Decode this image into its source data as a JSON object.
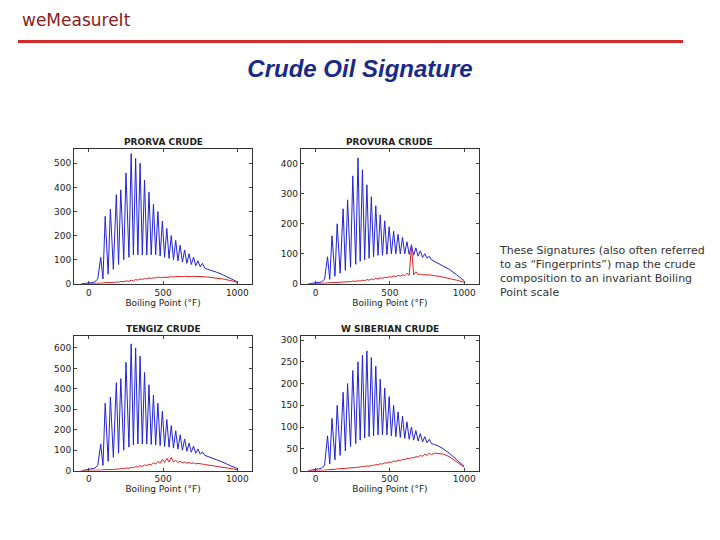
{
  "header": {
    "logo": "weMeasureIt",
    "title": "Crude Oil Signature"
  },
  "note": "These Signatures (also often referred to as “Fingerprints”) map the crude composition to an invariant Boiling Point scale",
  "chart_data": [
    {
      "type": "line",
      "title": "PRORVA CRUDE",
      "x_label": "Boiling Point (°F)",
      "x": [
        -50,
        0,
        20,
        40,
        60,
        80,
        95,
        110,
        130,
        145,
        165,
        185,
        200,
        215,
        235,
        250,
        270,
        285,
        300,
        315,
        330,
        345,
        360,
        375,
        390,
        405,
        420,
        435,
        450,
        465,
        480,
        495,
        510,
        525,
        540,
        555,
        570,
        585,
        600,
        615,
        630,
        645,
        660,
        675,
        690,
        705,
        720,
        735,
        750,
        765,
        780,
        800,
        830,
        860,
        900,
        950,
        1000
      ],
      "series": [
        {
          "color": "#2323d6",
          "values": [
            0,
            2,
            5,
            8,
            20,
            110,
            20,
            280,
            40,
            310,
            60,
            370,
            80,
            390,
            100,
            460,
            110,
            540,
            120,
            520,
            120,
            500,
            120,
            430,
            120,
            380,
            120,
            330,
            120,
            300,
            115,
            260,
            110,
            230,
            105,
            200,
            100,
            180,
            95,
            160,
            90,
            140,
            85,
            125,
            80,
            110,
            75,
            95,
            70,
            85,
            65,
            60,
            55,
            48,
            38,
            22,
            8
          ]
        },
        {
          "color": "#e02020",
          "values": [
            0,
            0,
            0,
            0,
            2,
            3,
            3,
            5,
            4,
            6,
            5,
            8,
            6,
            10,
            8,
            12,
            10,
            15,
            12,
            18,
            15,
            20,
            18,
            22,
            20,
            25,
            22,
            25,
            24,
            28,
            25,
            27,
            26,
            28,
            27,
            30,
            28,
            30,
            29,
            31,
            30,
            31,
            30,
            32,
            30,
            31,
            30,
            31,
            30,
            30,
            29,
            28,
            26,
            24,
            20,
            14,
            6
          ]
        }
      ],
      "xlim": [
        -100,
        1100
      ],
      "xticks": [
        0,
        500,
        1000
      ],
      "ylim": [
        0,
        560
      ],
      "yticks": [
        0,
        100,
        200,
        300,
        400,
        500
      ]
    },
    {
      "type": "line",
      "title": "PROVURA CRUDE",
      "x_label": "Boiling Point (°F)",
      "x": [
        -50,
        0,
        20,
        40,
        60,
        80,
        95,
        110,
        130,
        145,
        165,
        185,
        200,
        215,
        235,
        250,
        270,
        285,
        300,
        315,
        330,
        345,
        360,
        375,
        390,
        405,
        420,
        435,
        450,
        465,
        480,
        495,
        510,
        525,
        540,
        555,
        570,
        585,
        600,
        615,
        630,
        645,
        660,
        675,
        690,
        705,
        720,
        735,
        750,
        765,
        780,
        800,
        830,
        860,
        900,
        950,
        1000
      ],
      "series": [
        {
          "color": "#2323d6",
          "values": [
            0,
            2,
            4,
            6,
            15,
            90,
            15,
            160,
            25,
            200,
            35,
            250,
            45,
            280,
            55,
            360,
            65,
            420,
            75,
            380,
            80,
            330,
            85,
            290,
            90,
            260,
            95,
            230,
            95,
            210,
            98,
            190,
            100,
            175,
            100,
            165,
            100,
            155,
            100,
            140,
            98,
            130,
            95,
            120,
            92,
            110,
            88,
            100,
            85,
            92,
            80,
            75,
            68,
            60,
            48,
            30,
            10
          ]
        },
        {
          "color": "#e02020",
          "values": [
            0,
            0,
            0,
            0,
            2,
            3,
            3,
            4,
            4,
            5,
            5,
            6,
            6,
            8,
            7,
            9,
            8,
            10,
            9,
            12,
            10,
            14,
            12,
            16,
            14,
            18,
            16,
            20,
            18,
            22,
            20,
            24,
            22,
            26,
            24,
            28,
            25,
            30,
            27,
            35,
            28,
            125,
            30,
            40,
            30,
            32,
            30,
            31,
            29,
            30,
            28,
            27,
            25,
            22,
            18,
            12,
            5
          ]
        }
      ],
      "xlim": [
        -100,
        1100
      ],
      "xticks": [
        0,
        500,
        1000
      ],
      "ylim": [
        0,
        450
      ],
      "yticks": [
        0,
        100,
        200,
        300,
        400
      ]
    },
    {
      "type": "line",
      "title": "TENGIZ CRUDE",
      "x_label": "Boiling Point (°F)",
      "x": [
        -50,
        0,
        20,
        40,
        60,
        80,
        95,
        110,
        130,
        145,
        165,
        185,
        200,
        215,
        235,
        250,
        270,
        285,
        300,
        315,
        330,
        345,
        360,
        375,
        390,
        405,
        420,
        435,
        450,
        465,
        480,
        495,
        510,
        525,
        540,
        555,
        570,
        585,
        600,
        615,
        630,
        645,
        660,
        675,
        690,
        705,
        720,
        735,
        750,
        765,
        780,
        800,
        830,
        860,
        900,
        950,
        1000
      ],
      "series": [
        {
          "color": "#2323d6",
          "values": [
            0,
            5,
            10,
            12,
            25,
            130,
            25,
            330,
            45,
            360,
            65,
            430,
            85,
            450,
            100,
            530,
            115,
            620,
            125,
            600,
            130,
            560,
            130,
            480,
            130,
            420,
            128,
            370,
            125,
            330,
            122,
            290,
            118,
            250,
            115,
            220,
            110,
            195,
            105,
            175,
            100,
            155,
            95,
            135,
            90,
            120,
            85,
            105,
            80,
            92,
            75,
            70,
            62,
            55,
            42,
            25,
            10
          ]
        },
        {
          "color": "#e02020",
          "values": [
            0,
            0,
            0,
            0,
            2,
            3,
            3,
            5,
            4,
            6,
            5,
            8,
            7,
            10,
            9,
            13,
            11,
            16,
            14,
            20,
            17,
            24,
            20,
            28,
            24,
            32,
            28,
            38,
            32,
            45,
            36,
            55,
            40,
            60,
            42,
            65,
            42,
            50,
            40,
            45,
            38,
            42,
            36,
            40,
            34,
            38,
            33,
            35,
            32,
            32,
            30,
            28,
            25,
            22,
            18,
            12,
            5
          ]
        }
      ],
      "xlim": [
        -100,
        1100
      ],
      "xticks": [
        0,
        500,
        1000
      ],
      "ylim": [
        0,
        660
      ],
      "yticks": [
        0,
        100,
        200,
        300,
        400,
        500,
        600
      ]
    },
    {
      "type": "line",
      "title": "W SIBERIAN CRUDE",
      "x_label": "Boiling Point (°F)",
      "x": [
        -50,
        0,
        20,
        40,
        60,
        80,
        95,
        110,
        130,
        145,
        165,
        185,
        200,
        215,
        235,
        250,
        270,
        285,
        300,
        315,
        330,
        345,
        360,
        375,
        390,
        405,
        420,
        435,
        450,
        465,
        480,
        495,
        510,
        525,
        540,
        555,
        570,
        585,
        600,
        615,
        630,
        645,
        660,
        675,
        690,
        705,
        720,
        735,
        750,
        765,
        780,
        800,
        830,
        860,
        900,
        950,
        1000
      ],
      "series": [
        {
          "color": "#2323d6",
          "values": [
            0,
            2,
            4,
            6,
            12,
            80,
            15,
            120,
            25,
            150,
            35,
            180,
            45,
            200,
            55,
            230,
            62,
            250,
            70,
            265,
            75,
            275,
            78,
            260,
            80,
            240,
            82,
            210,
            82,
            190,
            82,
            170,
            80,
            150,
            78,
            135,
            76,
            125,
            74,
            112,
            72,
            100,
            70,
            92,
            68,
            85,
            66,
            78,
            64,
            72,
            62,
            60,
            56,
            50,
            40,
            25,
            10
          ]
        },
        {
          "color": "#e02020",
          "values": [
            0,
            0,
            0,
            0,
            1,
            2,
            2,
            3,
            3,
            4,
            4,
            5,
            5,
            6,
            6,
            7,
            7,
            8,
            8,
            10,
            9,
            11,
            10,
            12,
            12,
            14,
            13,
            16,
            15,
            18,
            17,
            20,
            19,
            22,
            21,
            24,
            23,
            26,
            25,
            28,
            27,
            30,
            29,
            32,
            31,
            35,
            33,
            38,
            35,
            40,
            37,
            40,
            39,
            38,
            32,
            20,
            8
          ]
        }
      ],
      "xlim": [
        -100,
        1100
      ],
      "xticks": [
        0,
        500,
        1000
      ],
      "ylim": [
        0,
        310
      ],
      "yticks": [
        0,
        50,
        100,
        150,
        200,
        250,
        300
      ]
    }
  ]
}
